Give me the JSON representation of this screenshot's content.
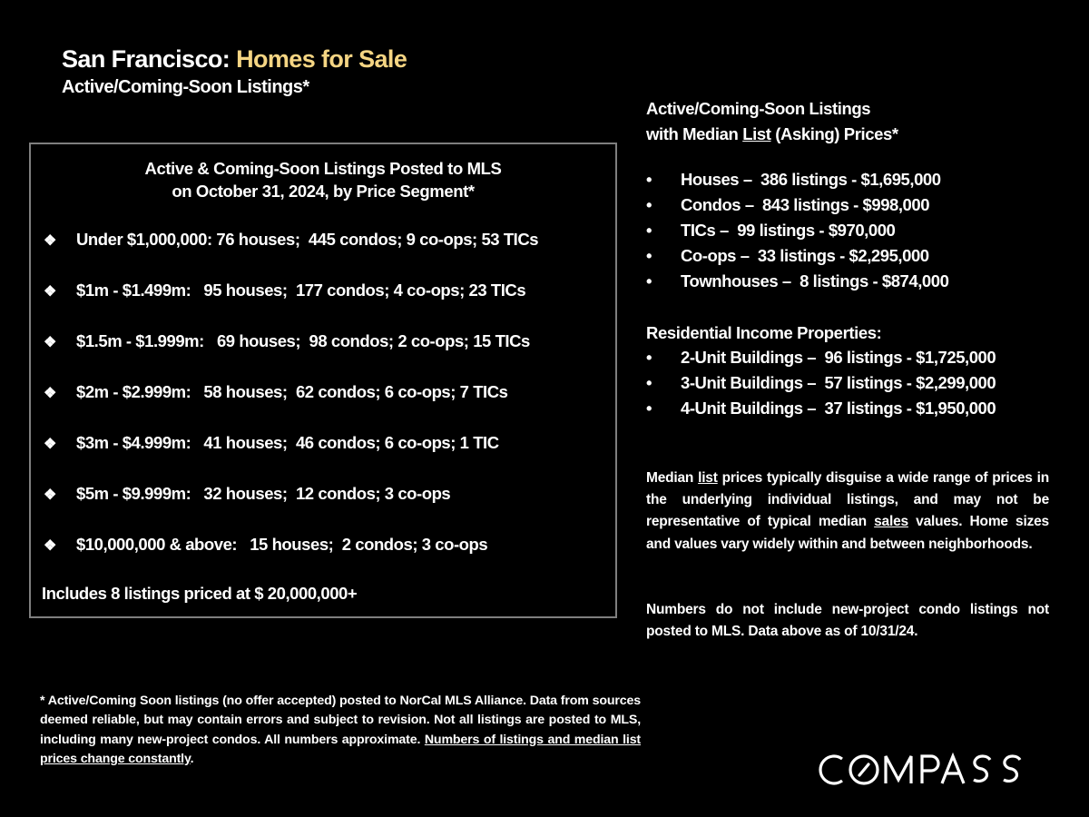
{
  "title": {
    "prefix": "San Francisco: ",
    "accent": "Homes for Sale",
    "accent_color": "#f5d583"
  },
  "subtitle": "Active/Coming-Soon Listings*",
  "box": {
    "heading_line1": "Active & Coming-Soon Listings Posted to MLS",
    "heading_line2": "on October 31, 2024, by Price Segment*",
    "bullet_icon": "diamond-bullet-icon",
    "segments": [
      "Under $1,000,000: 76 houses;  445 condos; 9 co-ops; 53 TICs",
      "$1m - $1.499m:   95 houses;  177 condos; 4 co-ops; 23 TICs",
      "$1.5m - $1.999m:   69 houses;  98 condos; 2 co-ops; 15 TICs",
      "$2m - $2.999m:   58 houses;  62 condos; 6 co-ops; 7 TICs",
      "$3m - $4.999m:   41 houses;  46 condos; 6 co-ops; 1 TIC",
      "$5m - $9.999m:   32 houses;  12 condos; 3 co-ops",
      "$10,000,000 & above:   15 houses;  2 condos; 3 co-ops"
    ],
    "note": "Includes 8 listings priced at $ 20,000,000+"
  },
  "right": {
    "heading_line1": "Active/Coming-Soon Listings",
    "heading_line2_pre": "with Median ",
    "heading_line2_u": "List",
    "heading_line2_post": " (Asking) Prices*",
    "bullet": "•",
    "types": [
      "Houses –  386 listings - $1,695,000",
      "Condos –  843 listings - $998,000",
      "TICs –  99 listings - $970,000",
      "Co-ops –  33 listings - $2,295,000",
      "Townhouses –  8 listings - $874,000"
    ],
    "income_heading": "Residential Income Properties:",
    "income": [
      "2-Unit Buildings –  96 listings - $1,725,000",
      "3-Unit Buildings –  57 listings - $2,299,000",
      "4-Unit Buildings –  37 listings - $1,950,000"
    ],
    "para1": {
      "a": "Median ",
      "u1": "list",
      "b": " prices typically disguise a wide range of prices in the underlying individual listings, and may not be representative of typical median ",
      "u2": "sales",
      "c": " values. Home sizes and values vary widely within and between neighborhoods."
    },
    "para2": "Numbers do not include new-project condo listings not posted to MLS. Data above as of 10/31/24."
  },
  "footnote": {
    "text": "* Active/Coming Soon listings (no offer accepted) posted to NorCal MLS Alliance.  Data from sources deemed reliable, but may contain errors and subject to revision.  Not all listings are posted to MLS, including many new-project condos. All numbers approximate. ",
    "underlined": "Numbers of listings and median list prices change constantly",
    "end": "."
  },
  "logo": "COMPASS"
}
